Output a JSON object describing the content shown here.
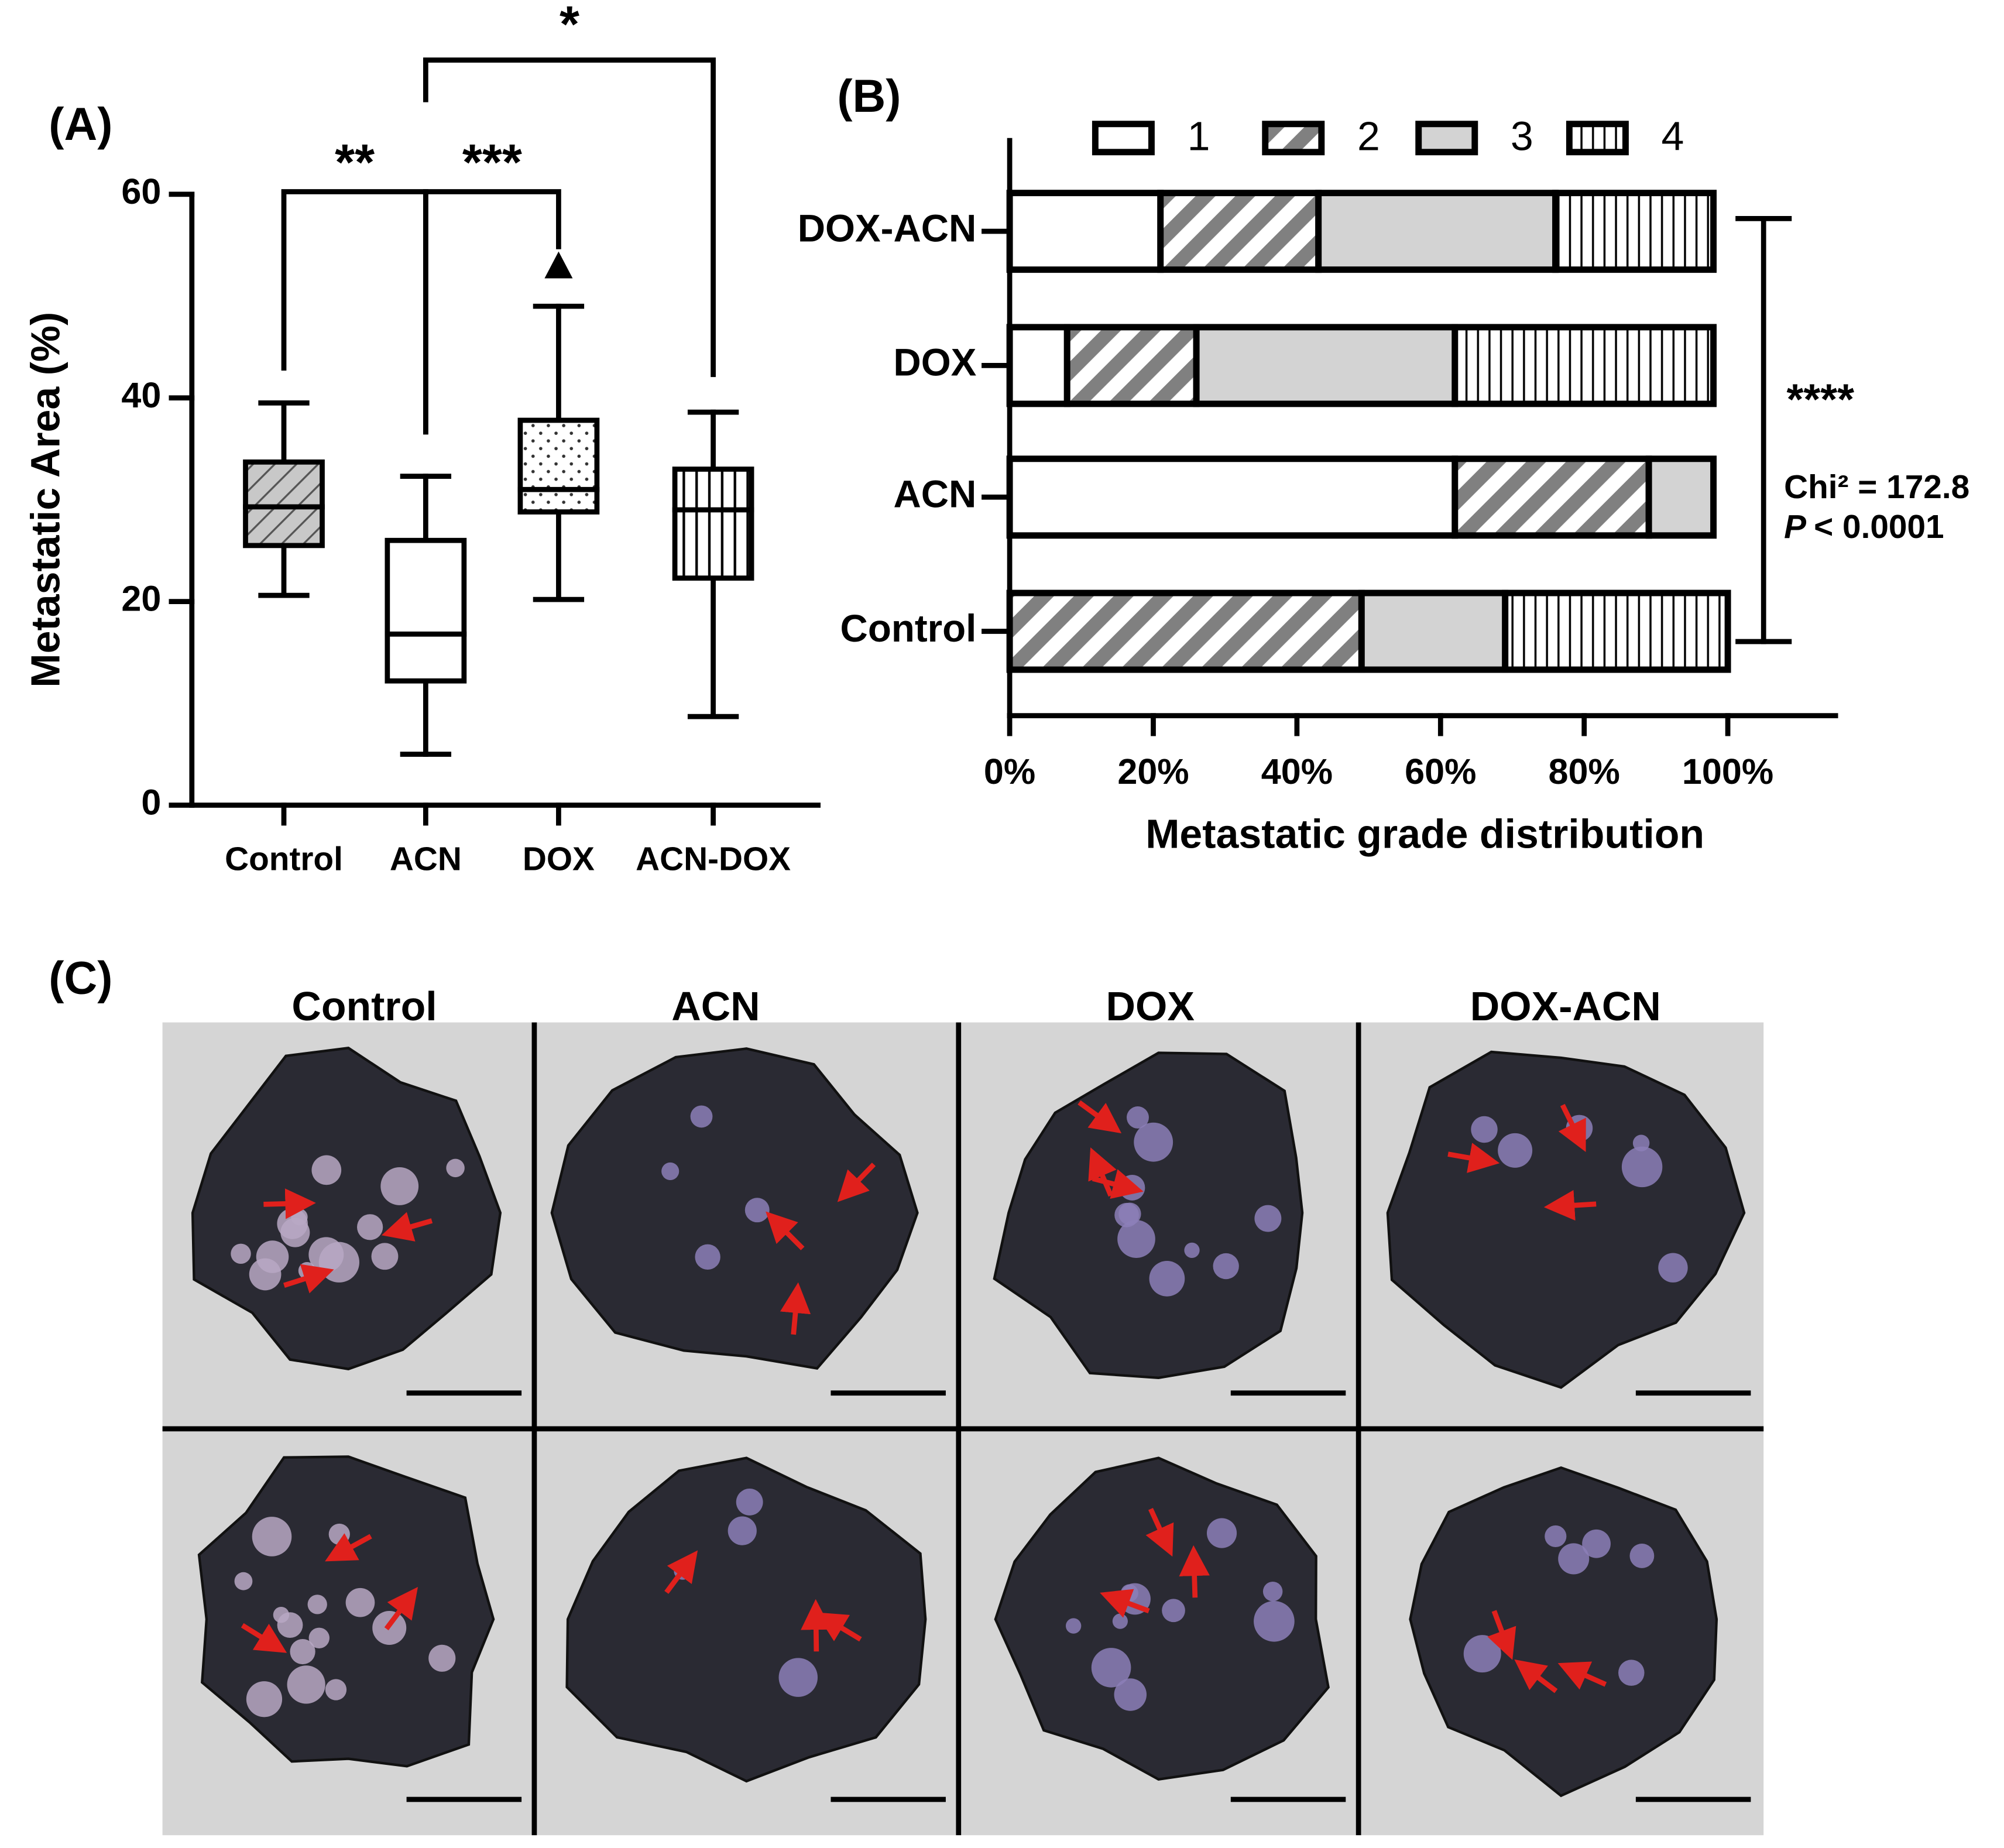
{
  "chart_data": [
    {
      "type": "box",
      "panel_label": "(A)",
      "y_label": "Metastatic Area (%)",
      "categories": [
        "Control",
        "ACN",
        "DOX",
        "ACN-DOX"
      ],
      "stats": {
        "max": [
          39.5,
          32.3,
          49,
          38.6
        ],
        "q3": [
          33.7,
          26,
          37.8,
          33
        ],
        "median": [
          29.3,
          16.8,
          31,
          29
        ],
        "q1": [
          25.5,
          12.2,
          28.8,
          22.3
        ],
        "min": [
          20.6,
          5,
          20.2,
          8.7
        ]
      },
      "outliers": [
        null,
        null,
        53,
        null
      ],
      "patterns": [
        "diagonal",
        "none",
        "dots",
        "vertical"
      ],
      "annotations": [
        "**",
        "***",
        "*"
      ],
      "ylim": [
        0,
        60
      ],
      "yticks": [
        0,
        20,
        40,
        60
      ]
    },
    {
      "type": "stacked-hbar",
      "panel_label": "(B)",
      "x_label": "Metastatic grade distribution",
      "categories": [
        "DOX-ACN",
        "DOX",
        "ACN",
        "Control"
      ],
      "series": [
        {
          "name": "1",
          "color": "#ffffff",
          "pattern": "none",
          "values": [
            21,
            8,
            62,
            0
          ]
        },
        {
          "name": "2",
          "color": "#808080",
          "pattern": "diagonal",
          "values": [
            22,
            18,
            27,
            49
          ]
        },
        {
          "name": "3",
          "color": "#d3d3d3",
          "pattern": "none",
          "values": [
            33,
            36,
            9,
            20
          ]
        },
        {
          "name": "4",
          "color": "#ffffff",
          "pattern": "vertical",
          "values": [
            22,
            36,
            0,
            31
          ]
        }
      ],
      "xlim": [
        0,
        115
      ],
      "xticks": [
        {
          "value": 0,
          "label": "0%"
        },
        {
          "value": 20,
          "label": "20%"
        },
        {
          "value": 40,
          "label": "40%"
        },
        {
          "value": 60,
          "label": "60%"
        },
        {
          "value": 80,
          "label": "80%"
        },
        {
          "value": 100,
          "label": "100%"
        }
      ],
      "legend": "top",
      "annotations": [
        "****",
        "Chi² = 172.8"
      ],
      "p_symbol": "P",
      "p_text": "< 0.0001"
    }
  ],
  "panel_c": {
    "label": "(C)",
    "columns": [
      "Control",
      "ACN",
      "DOX",
      "DOX-ACN"
    ]
  }
}
